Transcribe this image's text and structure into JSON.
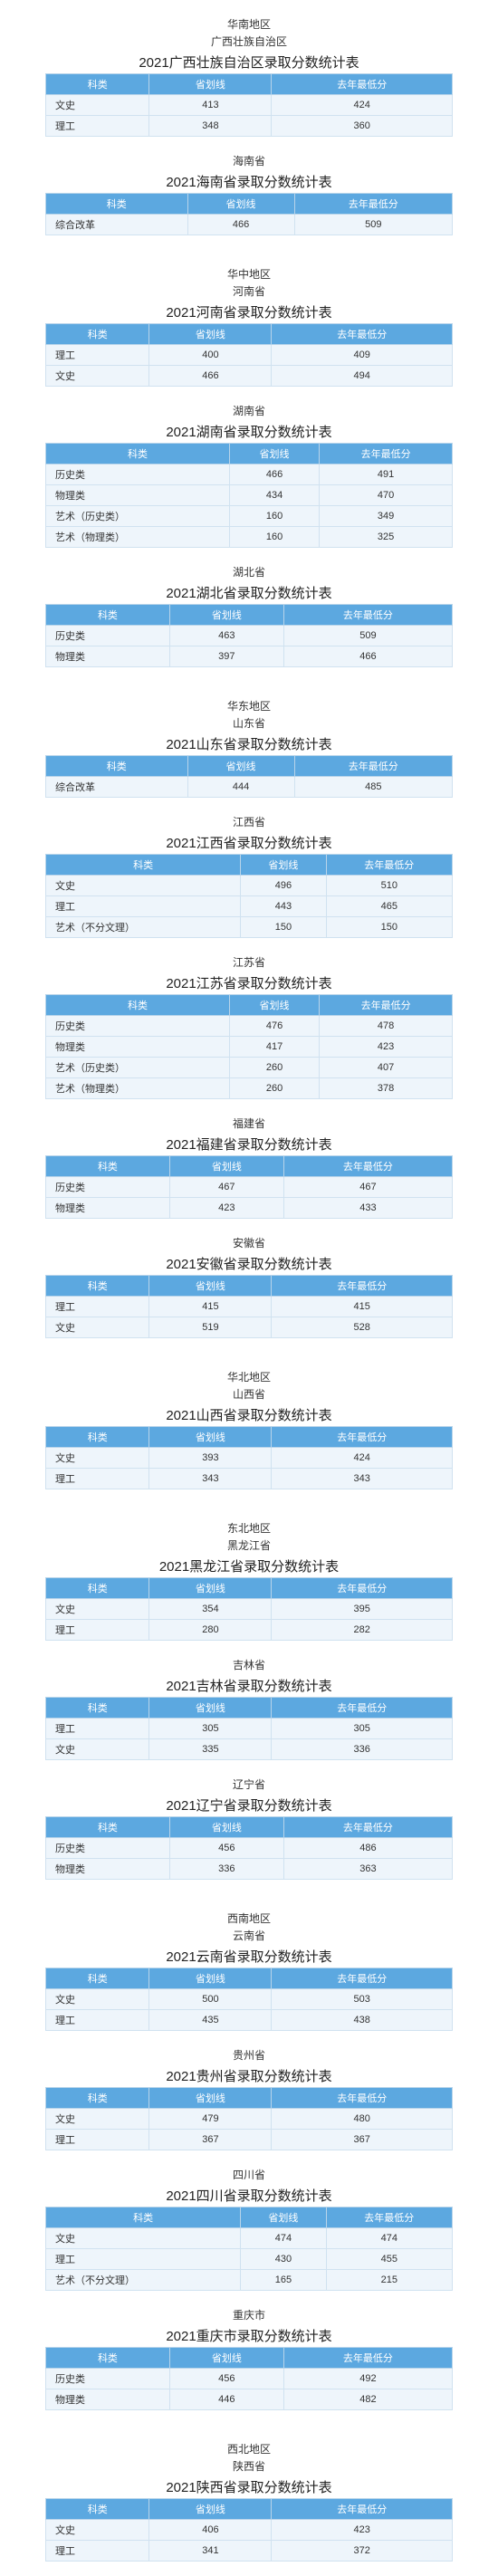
{
  "header_cols": [
    "科类",
    "省划线",
    "去年最低分"
  ],
  "regions": [
    {
      "region": "华南地区",
      "provinces": [
        {
          "province": "广西壮族自治区",
          "title": "2021广西壮族自治区录取分数统计表",
          "rows": [
            [
              "文史",
              "413",
              "424"
            ],
            [
              "理工",
              "348",
              "360"
            ]
          ]
        },
        {
          "province": "海南省",
          "title": "2021海南省录取分数统计表",
          "rows": [
            [
              "综合改革",
              "466",
              "509"
            ]
          ]
        }
      ]
    },
    {
      "region": "华中地区",
      "provinces": [
        {
          "province": "河南省",
          "title": "2021河南省录取分数统计表",
          "rows": [
            [
              "理工",
              "400",
              "409"
            ],
            [
              "文史",
              "466",
              "494"
            ]
          ]
        },
        {
          "province": "湖南省",
          "title": "2021湖南省录取分数统计表",
          "rows": [
            [
              "历史类",
              "466",
              "491"
            ],
            [
              "物理类",
              "434",
              "470"
            ],
            [
              "艺术（历史类）",
              "160",
              "349"
            ],
            [
              "艺术（物理类）",
              "160",
              "325"
            ]
          ]
        },
        {
          "province": "湖北省",
          "title": "2021湖北省录取分数统计表",
          "rows": [
            [
              "历史类",
              "463",
              "509"
            ],
            [
              "物理类",
              "397",
              "466"
            ]
          ]
        }
      ]
    },
    {
      "region": "华东地区",
      "provinces": [
        {
          "province": "山东省",
          "title": "2021山东省录取分数统计表",
          "rows": [
            [
              "综合改革",
              "444",
              "485"
            ]
          ]
        },
        {
          "province": "江西省",
          "title": "2021江西省录取分数统计表",
          "rows": [
            [
              "文史",
              "496",
              "510"
            ],
            [
              "理工",
              "443",
              "465"
            ],
            [
              "艺术（不分文理）",
              "150",
              "150"
            ]
          ]
        },
        {
          "province": "江苏省",
          "title": "2021江苏省录取分数统计表",
          "rows": [
            [
              "历史类",
              "476",
              "478"
            ],
            [
              "物理类",
              "417",
              "423"
            ],
            [
              "艺术（历史类）",
              "260",
              "407"
            ],
            [
              "艺术（物理类）",
              "260",
              "378"
            ]
          ]
        },
        {
          "province": "福建省",
          "title": "2021福建省录取分数统计表",
          "rows": [
            [
              "历史类",
              "467",
              "467"
            ],
            [
              "物理类",
              "423",
              "433"
            ]
          ]
        },
        {
          "province": "安徽省",
          "title": "2021安徽省录取分数统计表",
          "rows": [
            [
              "理工",
              "415",
              "415"
            ],
            [
              "文史",
              "519",
              "528"
            ]
          ]
        }
      ]
    },
    {
      "region": "华北地区",
      "provinces": [
        {
          "province": "山西省",
          "title": "2021山西省录取分数统计表",
          "rows": [
            [
              "文史",
              "393",
              "424"
            ],
            [
              "理工",
              "343",
              "343"
            ]
          ]
        }
      ]
    },
    {
      "region": "东北地区",
      "provinces": [
        {
          "province": "黑龙江省",
          "title": "2021黑龙江省录取分数统计表",
          "rows": [
            [
              "文史",
              "354",
              "395"
            ],
            [
              "理工",
              "280",
              "282"
            ]
          ]
        },
        {
          "province": "吉林省",
          "title": "2021吉林省录取分数统计表",
          "rows": [
            [
              "理工",
              "305",
              "305"
            ],
            [
              "文史",
              "335",
              "336"
            ]
          ]
        },
        {
          "province": "辽宁省",
          "title": "2021辽宁省录取分数统计表",
          "rows": [
            [
              "历史类",
              "456",
              "486"
            ],
            [
              "物理类",
              "336",
              "363"
            ]
          ]
        }
      ]
    },
    {
      "region": "西南地区",
      "provinces": [
        {
          "province": "云南省",
          "title": "2021云南省录取分数统计表",
          "rows": [
            [
              "文史",
              "500",
              "503"
            ],
            [
              "理工",
              "435",
              "438"
            ]
          ]
        },
        {
          "province": "贵州省",
          "title": "2021贵州省录取分数统计表",
          "rows": [
            [
              "文史",
              "479",
              "480"
            ],
            [
              "理工",
              "367",
              "367"
            ]
          ]
        },
        {
          "province": "四川省",
          "title": "2021四川省录取分数统计表",
          "rows": [
            [
              "文史",
              "474",
              "474"
            ],
            [
              "理工",
              "430",
              "455"
            ],
            [
              "艺术（不分文理）",
              "165",
              "215"
            ]
          ]
        },
        {
          "province": "重庆市",
          "title": "2021重庆市录取分数统计表",
          "rows": [
            [
              "历史类",
              "456",
              "492"
            ],
            [
              "物理类",
              "446",
              "482"
            ]
          ]
        }
      ]
    },
    {
      "region": "西北地区",
      "provinces": [
        {
          "province": "陕西省",
          "title": "2021陕西省录取分数统计表",
          "rows": [
            [
              "文史",
              "406",
              "423"
            ],
            [
              "理工",
              "341",
              "372"
            ]
          ]
        }
      ]
    }
  ]
}
